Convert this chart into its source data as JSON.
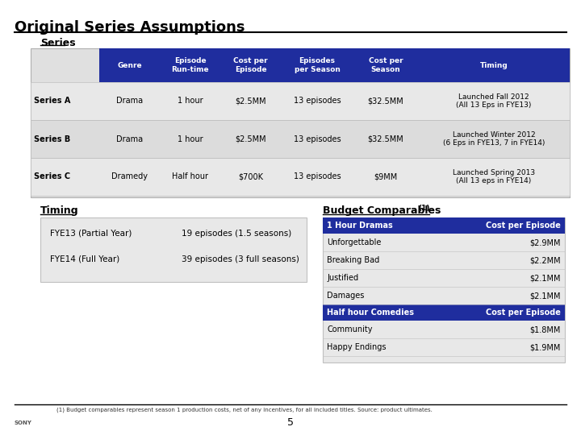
{
  "title": "Original Series Assumptions",
  "bg_color": "#ffffff",
  "header_blue": "#1F2D9E",
  "series_section_label": "Series",
  "series_headers": [
    "Genre",
    "Episode\nRun-time",
    "Cost per\nEpisode",
    "Episodes\nper Season",
    "Cost per\nSeason",
    "Timing"
  ],
  "series_data": [
    [
      "Series A",
      "Drama",
      "1 hour",
      "$2.5MM",
      "13 episodes",
      "$32.5MM",
      "Launched Fall 2012\n(All 13 Eps in FYE13)"
    ],
    [
      "Series B",
      "Drama",
      "1 hour",
      "$2.5MM",
      "13 episodes",
      "$32.5MM",
      "Launched Winter 2012\n(6 Eps in FYE13, 7 in FYE14)"
    ],
    [
      "Series C",
      "Dramedy",
      "Half hour",
      "$700K",
      "13 episodes",
      "$9MM",
      "Launched Spring 2013\n(All 13 eps in FYE14)"
    ]
  ],
  "timing_label": "Timing",
  "timing_data": [
    [
      "FYE13 (Partial Year)",
      "19 episodes (1.5 seasons)"
    ],
    [
      "FYE14 (Full Year)",
      "39 episodes (3 full seasons)"
    ]
  ],
  "budget_label": "Budget Comparables",
  "budget_superscript": "(1)",
  "budget_header1": [
    "1 Hour Dramas",
    "Cost per Episode"
  ],
  "budget_data1": [
    [
      "Unforgettable",
      "$2.9MM"
    ],
    [
      "Breaking Bad",
      "$2.2MM"
    ],
    [
      "Justified",
      "$2.1MM"
    ],
    [
      "Damages",
      "$2.1MM"
    ]
  ],
  "budget_header2": [
    "Half hour Comedies",
    "Cost per Episode"
  ],
  "budget_data2": [
    [
      "Community",
      "$1.8MM"
    ],
    [
      "Happy Endings",
      "$1.9MM"
    ]
  ],
  "footnote": "(1) Budget comparables represent season 1 production costs, net of any incentives, for all included titles. Source: product ultimates.",
  "page_number": "5"
}
